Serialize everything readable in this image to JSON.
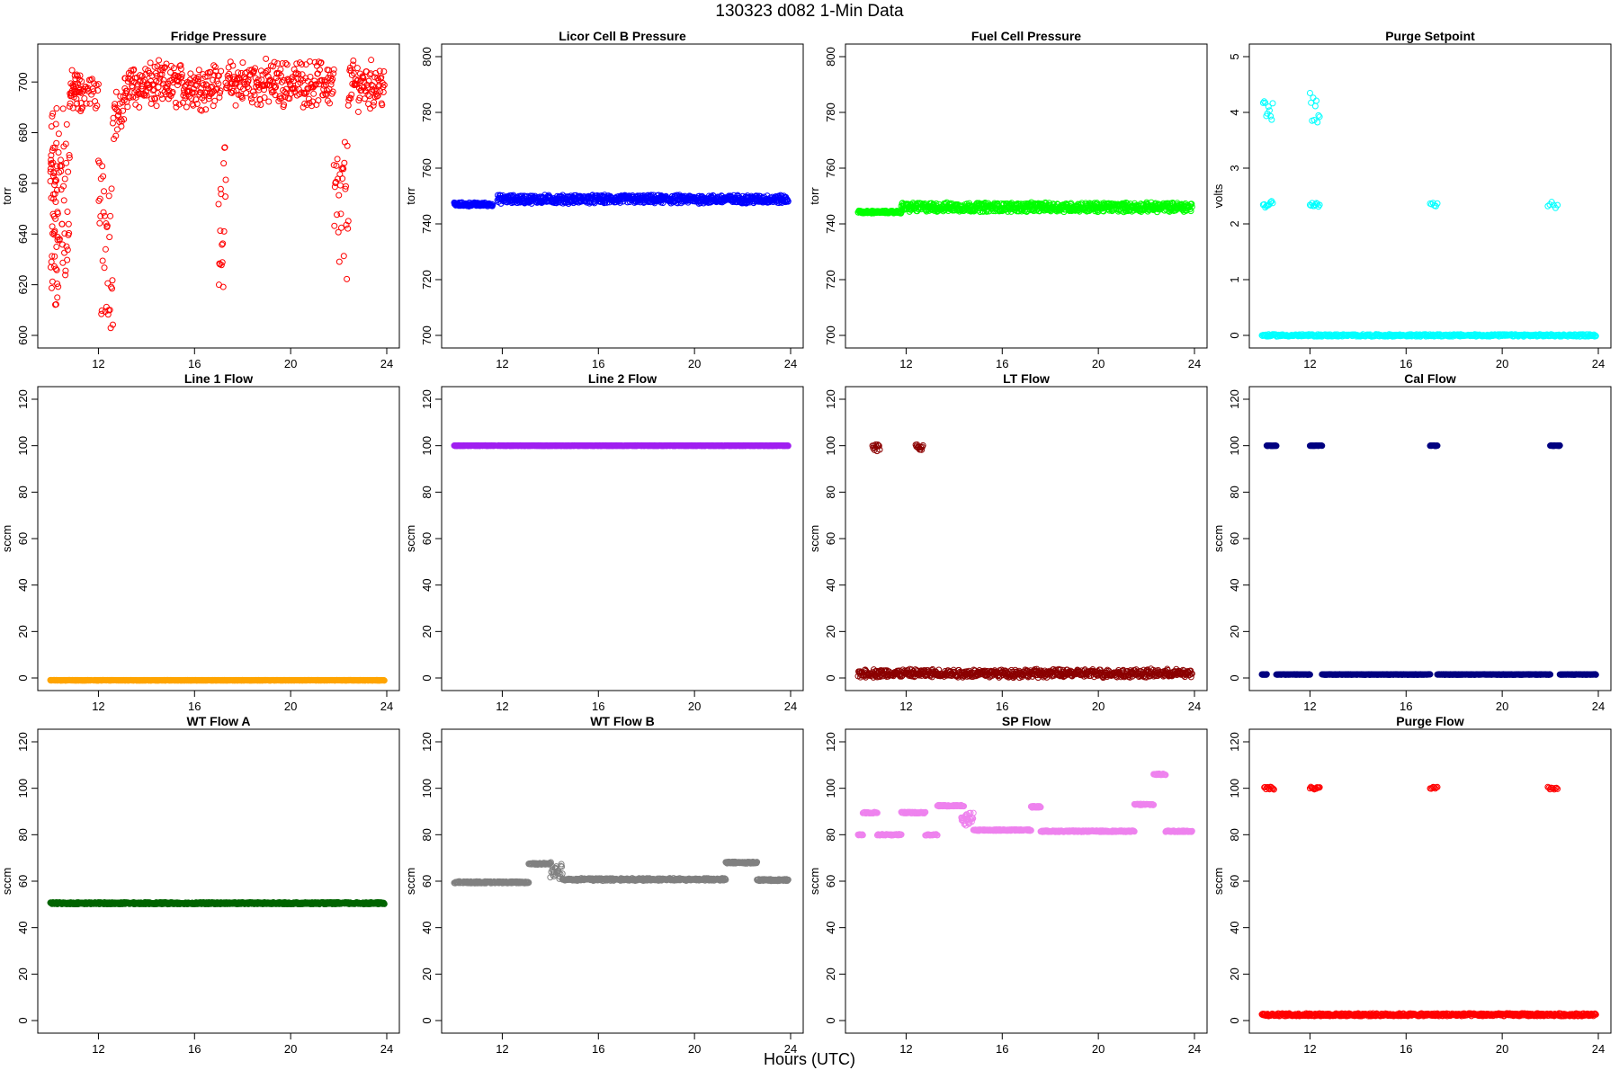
{
  "figure": {
    "title": "130323    d082    1-Min Data",
    "xlabel": "Hours (UTC)"
  },
  "chart_data": [
    {
      "type": "scatter",
      "title": "Fridge Pressure",
      "ylabel": "torr",
      "color": "#ff0000",
      "xlim": [
        10,
        24
      ],
      "ylim": [
        600,
        710
      ],
      "xticks": [
        12,
        16,
        20,
        24
      ],
      "yticks": [
        600,
        620,
        640,
        660,
        680,
        700
      ],
      "segments": [
        [
          10.0,
          10.3,
          610,
          690,
          55
        ],
        [
          10.3,
          10.8,
          620,
          690,
          40
        ],
        [
          10.8,
          11.3,
          690,
          702,
          40
        ],
        [
          11.3,
          12.0,
          692,
          700,
          25
        ],
        [
          12.0,
          12.6,
          605,
          668,
          35
        ],
        [
          12.6,
          13.1,
          680,
          695,
          25
        ],
        [
          13.1,
          16.8,
          692,
          705,
          200
        ],
        [
          16.8,
          17.1,
          693,
          705,
          15
        ],
        [
          17.0,
          17.3,
          622,
          672,
          18
        ],
        [
          17.3,
          21.8,
          693,
          706,
          230
        ],
        [
          21.8,
          22.4,
          620,
          676,
          30
        ],
        [
          22.4,
          23.9,
          692,
          706,
          80
        ]
      ],
      "noise": 4
    },
    {
      "type": "scatter",
      "title": "Licor Cell B Pressure",
      "ylabel": "torr",
      "color": "#0000ff",
      "xlim": [
        10,
        24
      ],
      "ylim": [
        700,
        800
      ],
      "xticks": [
        12,
        16,
        20,
        24
      ],
      "yticks": [
        700,
        720,
        740,
        760,
        780,
        800
      ],
      "segments": [
        [
          10.0,
          11.6,
          746.5,
          747.5,
          100
        ],
        [
          11.8,
          23.9,
          747.5,
          750.2,
          750
        ]
      ],
      "noise": 0.3
    },
    {
      "type": "scatter",
      "title": "Fuel Cell Pressure",
      "ylabel": "torr",
      "color": "#00ff00",
      "xlim": [
        10,
        24
      ],
      "ylim": [
        700,
        800
      ],
      "xticks": [
        12,
        16,
        20,
        24
      ],
      "yticks": [
        700,
        720,
        740,
        760,
        780,
        800
      ],
      "segments": [
        [
          10.0,
          11.8,
          744,
          744.5,
          110
        ],
        [
          11.8,
          23.9,
          744.5,
          747.5,
          750
        ]
      ],
      "noise": 0.3
    },
    {
      "type": "scatter",
      "title": "Purge Setpoint",
      "ylabel": "volts",
      "color": "#00ffff",
      "xlim": [
        10,
        24
      ],
      "ylim": [
        0,
        5
      ],
      "xticks": [
        12,
        16,
        20,
        24
      ],
      "yticks": [
        0,
        1,
        2,
        3,
        4,
        5
      ],
      "segments": [
        [
          10.0,
          23.9,
          0,
          0,
          500
        ],
        [
          10.05,
          10.45,
          2.3,
          2.4,
          10
        ],
        [
          10.05,
          10.45,
          3.8,
          4.2,
          10
        ],
        [
          12.0,
          12.4,
          2.3,
          2.4,
          10
        ],
        [
          12.0,
          12.4,
          3.8,
          4.4,
          10
        ],
        [
          17.0,
          17.3,
          2.3,
          2.4,
          6
        ],
        [
          21.9,
          22.3,
          2.3,
          2.4,
          6
        ]
      ],
      "noise": 0.02
    },
    {
      "type": "scatter",
      "title": "Line 1 Flow",
      "ylabel": "sccm",
      "color": "#ffa500",
      "xlim": [
        10,
        24
      ],
      "ylim": [
        0,
        120
      ],
      "xticks": [
        12,
        16,
        20,
        24
      ],
      "yticks": [
        0,
        20,
        40,
        60,
        80,
        100,
        120
      ],
      "segments": [
        [
          10.0,
          11.7,
          -1,
          -1,
          110
        ],
        [
          11.8,
          23.9,
          -1,
          -1,
          750
        ]
      ],
      "noise": 0.1
    },
    {
      "type": "scatter",
      "title": "Line 2 Flow",
      "ylabel": "sccm",
      "color": "#a020f0",
      "xlim": [
        10,
        24
      ],
      "ylim": [
        0,
        120
      ],
      "xticks": [
        12,
        16,
        20,
        24
      ],
      "yticks": [
        0,
        20,
        40,
        60,
        80,
        100,
        120
      ],
      "segments": [
        [
          10.0,
          11.7,
          100,
          100,
          110
        ],
        [
          11.8,
          23.9,
          100,
          100,
          750
        ]
      ],
      "noise": 0.1
    },
    {
      "type": "scatter",
      "title": "LT Flow",
      "ylabel": "sccm",
      "color": "#8b0000",
      "xlim": [
        10,
        24
      ],
      "ylim": [
        0,
        120
      ],
      "xticks": [
        12,
        16,
        20,
        24
      ],
      "yticks": [
        0,
        20,
        40,
        60,
        80,
        100,
        120
      ],
      "segments": [
        [
          10.0,
          23.9,
          0.5,
          3.5,
          700
        ],
        [
          10.6,
          10.9,
          98,
          101,
          12
        ],
        [
          12.4,
          12.7,
          98,
          101,
          12
        ]
      ],
      "noise": 0.5
    },
    {
      "type": "scatter",
      "title": "Cal Flow",
      "ylabel": "sccm",
      "color": "#000080",
      "xlim": [
        10,
        24
      ],
      "ylim": [
        0,
        120
      ],
      "xticks": [
        12,
        16,
        20,
        24
      ],
      "yticks": [
        0,
        20,
        40,
        60,
        80,
        100,
        120
      ],
      "segments": [
        [
          10.0,
          10.2,
          1.5,
          1.5,
          10
        ],
        [
          10.2,
          10.6,
          100,
          100,
          25
        ],
        [
          10.6,
          12.0,
          1.5,
          1.5,
          70
        ],
        [
          12.0,
          12.5,
          100,
          100,
          25
        ],
        [
          12.5,
          17.0,
          1.5,
          1.5,
          250
        ],
        [
          17.0,
          17.3,
          100,
          100,
          20
        ],
        [
          17.3,
          22.0,
          1.5,
          1.5,
          250
        ],
        [
          22.0,
          22.4,
          100,
          100,
          25
        ],
        [
          22.4,
          23.9,
          1.5,
          1.5,
          80
        ]
      ],
      "noise": 0.1
    },
    {
      "type": "scatter",
      "title": "WT Flow A",
      "ylabel": "sccm",
      "color": "#006400",
      "xlim": [
        10,
        24
      ],
      "ylim": [
        0,
        120
      ],
      "xticks": [
        12,
        16,
        20,
        24
      ],
      "yticks": [
        0,
        20,
        40,
        60,
        80,
        100,
        120
      ],
      "segments": [
        [
          10.0,
          11.7,
          50.5,
          50.5,
          110
        ],
        [
          11.8,
          23.9,
          50.5,
          50.5,
          750
        ]
      ],
      "noise": 0.4
    },
    {
      "type": "scatter",
      "title": "WT Flow B",
      "ylabel": "sccm",
      "color": "#808080",
      "xlim": [
        10,
        24
      ],
      "ylim": [
        0,
        120
      ],
      "xticks": [
        12,
        16,
        20,
        24
      ],
      "yticks": [
        0,
        20,
        40,
        60,
        80,
        100,
        120
      ],
      "segments": [
        [
          10.0,
          11.7,
          59.5,
          59.5,
          90
        ],
        [
          11.8,
          13.1,
          59.5,
          59.5,
          70
        ],
        [
          13.1,
          14.0,
          67.5,
          67.5,
          40
        ],
        [
          14.0,
          14.5,
          61,
          68,
          25
        ],
        [
          14.5,
          21.3,
          61,
          60.5,
          380
        ],
        [
          21.3,
          22.6,
          68,
          68,
          70
        ],
        [
          22.6,
          23.9,
          60.5,
          60.5,
          70
        ]
      ],
      "noise": 0.4
    },
    {
      "type": "scatter",
      "title": "SP Flow",
      "ylabel": "sccm",
      "color": "#ee82ee",
      "xlim": [
        10,
        24
      ],
      "ylim": [
        0,
        120
      ],
      "xticks": [
        12,
        16,
        20,
        24
      ],
      "yticks": [
        0,
        20,
        40,
        60,
        80,
        100,
        120
      ],
      "segments": [
        [
          10.0,
          10.2,
          80,
          80,
          10
        ],
        [
          10.2,
          10.8,
          89.5,
          89.5,
          30
        ],
        [
          10.8,
          11.8,
          80,
          80,
          45
        ],
        [
          11.8,
          12.8,
          89.5,
          89.5,
          45
        ],
        [
          12.8,
          13.3,
          80,
          80,
          20
        ],
        [
          13.3,
          14.4,
          92.5,
          92.5,
          50
        ],
        [
          14.3,
          14.8,
          84,
          90,
          30
        ],
        [
          14.8,
          17.2,
          82,
          82,
          120
        ],
        [
          17.2,
          17.6,
          92,
          92,
          20
        ],
        [
          17.6,
          21.5,
          81.5,
          81.5,
          200
        ],
        [
          21.5,
          22.3,
          93,
          93,
          35
        ],
        [
          22.3,
          22.8,
          106,
          106,
          25
        ],
        [
          22.8,
          23.9,
          81.5,
          81.5,
          60
        ]
      ],
      "noise": 0.3
    },
    {
      "type": "scatter",
      "title": "Purge Flow",
      "ylabel": "sccm",
      "color": "#ff0000",
      "xlim": [
        10,
        24
      ],
      "ylim": [
        0,
        120
      ],
      "xticks": [
        12,
        16,
        20,
        24
      ],
      "yticks": [
        0,
        20,
        40,
        60,
        80,
        100,
        120
      ],
      "segments": [
        [
          10.0,
          23.9,
          2.5,
          2.5,
          650
        ],
        [
          10.1,
          10.5,
          100,
          100,
          12
        ],
        [
          12.0,
          12.4,
          100,
          100,
          12
        ],
        [
          17.0,
          17.3,
          100,
          100,
          8
        ],
        [
          21.9,
          22.3,
          100,
          100,
          10
        ]
      ],
      "noise": 0.6
    }
  ]
}
